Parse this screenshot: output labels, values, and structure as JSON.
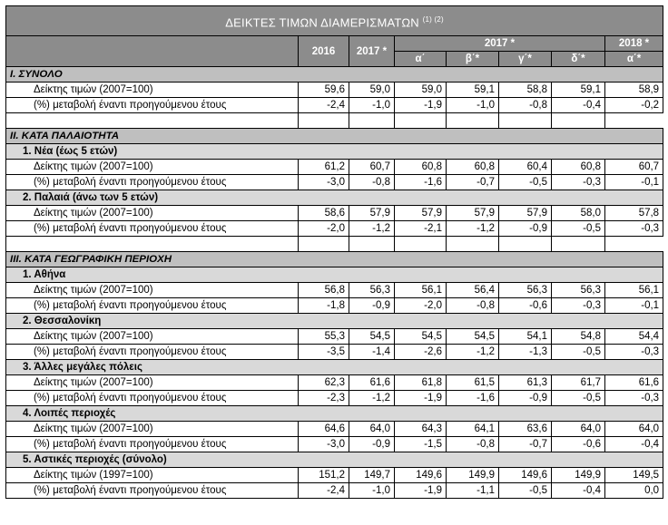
{
  "title": "ΔΕΙΚΤΕΣ ΤΙΜΩΝ ΔΙΑΜΕΡΙΣΜΑΤΩΝ",
  "title_notes": "(1) (2)",
  "header": {
    "col_2016": "2016",
    "col_2017_annual": "2017 *",
    "col_2017_quarters": "2017 *",
    "col_2018": "2018 *",
    "q1": "α΄",
    "q2": "β΄*",
    "q3": "γ΄*",
    "q4": "δ΄*",
    "q1_2018": "α΄*"
  },
  "sections": {
    "s1": "Ι. ΣΥΝΟΛΟ",
    "s2": "ΙΙ. ΚΑΤΑ ΠΑΛΑΙΟΤΗΤΑ",
    "s3": "ΙΙΙ. ΚΑΤΑ ΓΕΩΓΡΑΦΙΚΗ ΠΕΡΙΟΧΗ"
  },
  "subsections": {
    "new": "1.  Νέα (έως 5 ετών)",
    "old": "2. Παλαιά (άνω των 5 ετών)",
    "athens": "1.  Αθήνα",
    "thess": "2.  Θεσσαλονίκη",
    "bigcities": "3.  Άλλες μεγάλες πόλεις",
    "other": "4.  Λοιπές περιοχές",
    "urban": "5.  Αστικές περιοχές (σύνολο)"
  },
  "row_labels": {
    "index": "Δείκτης τιμών (2007=100)",
    "index_1997": "Δείκτης τιμών (1997=100)",
    "change": "(%) μεταβολή έναντι προηγούμενου έτους"
  },
  "rows": {
    "total_index": [
      "59,6",
      "59,0",
      "59,0",
      "59,1",
      "58,8",
      "59,1",
      "58,9"
    ],
    "total_change": [
      "-2,4",
      "-1,0",
      "-1,9",
      "-1,0",
      "-0,8",
      "-0,4",
      "-0,2"
    ],
    "new_index": [
      "61,2",
      "60,7",
      "60,8",
      "60,8",
      "60,4",
      "60,8",
      "60,7"
    ],
    "new_change": [
      "-3,0",
      "-0,8",
      "-1,6",
      "-0,7",
      "-0,5",
      "-0,3",
      "-0,1"
    ],
    "old_index": [
      "58,6",
      "57,9",
      "57,9",
      "57,9",
      "57,9",
      "58,0",
      "57,8"
    ],
    "old_change": [
      "-2,0",
      "-1,2",
      "-2,1",
      "-1,2",
      "-0,9",
      "-0,5",
      "-0,3"
    ],
    "athens_index": [
      "56,8",
      "56,3",
      "56,1",
      "56,4",
      "56,3",
      "56,3",
      "56,1"
    ],
    "athens_change": [
      "-1,8",
      "-0,9",
      "-2,0",
      "-0,8",
      "-0,6",
      "-0,3",
      "-0,1"
    ],
    "thess_index": [
      "55,3",
      "54,5",
      "54,5",
      "54,5",
      "54,1",
      "54,8",
      "54,4"
    ],
    "thess_change": [
      "-3,5",
      "-1,4",
      "-2,6",
      "-1,2",
      "-1,3",
      "-0,5",
      "-0,3"
    ],
    "bigcities_index": [
      "62,3",
      "61,6",
      "61,8",
      "61,5",
      "61,3",
      "61,7",
      "61,6"
    ],
    "bigcities_change": [
      "-2,3",
      "-1,2",
      "-1,9",
      "-1,6",
      "-0,9",
      "-0,5",
      "-0,3"
    ],
    "other_index": [
      "64,6",
      "64,0",
      "64,3",
      "64,1",
      "63,6",
      "64,0",
      "64,0"
    ],
    "other_change": [
      "-3,0",
      "-0,9",
      "-1,5",
      "-0,8",
      "-0,7",
      "-0,6",
      "-0,4"
    ],
    "urban_index": [
      "151,2",
      "149,7",
      "149,6",
      "149,9",
      "149,6",
      "149,9",
      "149,5"
    ],
    "urban_change": [
      "-2,4",
      "-1,0",
      "-1,9",
      "-1,1",
      "-0,5",
      "-0,4",
      "0,0"
    ]
  }
}
